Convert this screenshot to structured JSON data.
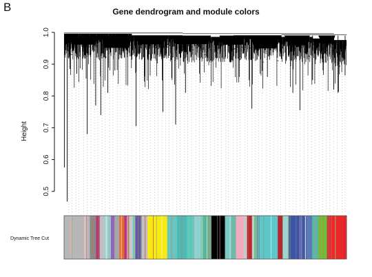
{
  "panel_label": "B",
  "chart_data": {
    "type": "dendrogram",
    "title": "Gene dendrogram and module colors",
    "ylabel": "Height",
    "xlabel": "",
    "ylim": [
      0.43,
      1.0
    ],
    "yticks": [
      0.5,
      0.6,
      0.7,
      0.8,
      0.9,
      1.0
    ],
    "ytick_labels": [
      "0.5",
      "0.6",
      "0.7",
      "0.8",
      "0.9",
      "1.0"
    ],
    "color_bar_label": "Dynamic Tree Cut",
    "merge_heights": [
      0.995,
      0.99,
      0.985,
      0.99,
      0.985,
      0.98,
      0.975
    ],
    "leaf_dips": [
      {
        "x": 0.001,
        "y": 0.575
      },
      {
        "x": 0.011,
        "y": 0.468
      },
      {
        "x": 0.021,
        "y": 0.885
      },
      {
        "x": 0.045,
        "y": 0.87
      },
      {
        "x": 0.082,
        "y": 0.68
      },
      {
        "x": 0.112,
        "y": 0.77
      },
      {
        "x": 0.13,
        "y": 0.74
      },
      {
        "x": 0.155,
        "y": 0.81
      },
      {
        "x": 0.18,
        "y": 0.88
      },
      {
        "x": 0.255,
        "y": 0.705
      },
      {
        "x": 0.35,
        "y": 0.75
      },
      {
        "x": 0.395,
        "y": 0.71
      },
      {
        "x": 0.43,
        "y": 0.81
      },
      {
        "x": 0.62,
        "y": 0.86
      },
      {
        "x": 0.665,
        "y": 0.76
      },
      {
        "x": 0.72,
        "y": 0.86
      },
      {
        "x": 0.81,
        "y": 0.81
      },
      {
        "x": 0.835,
        "y": 0.755
      },
      {
        "x": 0.88,
        "y": 0.85
      },
      {
        "x": 0.955,
        "y": 0.82
      },
      {
        "x": 0.97,
        "y": 0.81
      },
      {
        "x": 0.995,
        "y": 0.865
      }
    ],
    "module_colors": [
      {
        "start": 0.0,
        "end": 0.105,
        "color": "#b7b7b7"
      },
      {
        "start": 0.105,
        "end": 0.13,
        "color": "#8a8a8a"
      },
      {
        "start": 0.13,
        "end": 0.145,
        "color": "#b23a7a"
      },
      {
        "start": 0.145,
        "end": 0.165,
        "color": "#c0c0c0"
      },
      {
        "start": 0.165,
        "end": 0.19,
        "color": "#9fd4cf"
      },
      {
        "start": 0.19,
        "end": 0.205,
        "color": "#8f66b8"
      },
      {
        "start": 0.205,
        "end": 0.225,
        "color": "#a5a5a5"
      },
      {
        "start": 0.225,
        "end": 0.245,
        "color": "#e66a2c"
      },
      {
        "start": 0.245,
        "end": 0.262,
        "color": "#b23a7a"
      },
      {
        "start": 0.262,
        "end": 0.278,
        "color": "#c8c8c8"
      },
      {
        "start": 0.278,
        "end": 0.29,
        "color": "#7dd3cc"
      },
      {
        "start": 0.29,
        "end": 0.315,
        "color": "#6a52a8"
      },
      {
        "start": 0.315,
        "end": 0.34,
        "color": "#c0c0c0"
      },
      {
        "start": 0.34,
        "end": 0.42,
        "color": "#f5ea14"
      },
      {
        "start": 0.42,
        "end": 0.46,
        "color": "#6ec3bd"
      },
      {
        "start": 0.46,
        "end": 0.5,
        "color": "#4bbbb5"
      },
      {
        "start": 0.5,
        "end": 0.53,
        "color": "#5fc8c0"
      },
      {
        "start": 0.53,
        "end": 0.565,
        "color": "#8dd2cc"
      },
      {
        "start": 0.565,
        "end": 0.585,
        "color": "#5ab4a0"
      },
      {
        "start": 0.585,
        "end": 0.6,
        "color": "#7aa88c"
      },
      {
        "start": 0.6,
        "end": 0.655,
        "color": "#000000"
      },
      {
        "start": 0.655,
        "end": 0.68,
        "color": "#7dc9c4"
      },
      {
        "start": 0.68,
        "end": 0.7,
        "color": "#6fb9a6"
      },
      {
        "start": 0.7,
        "end": 0.73,
        "color": "#f5a9bd"
      },
      {
        "start": 0.73,
        "end": 0.745,
        "color": "#c9c9c9"
      },
      {
        "start": 0.745,
        "end": 0.765,
        "color": "#b52a30"
      },
      {
        "start": 0.765,
        "end": 0.775,
        "color": "#c8c8c8"
      },
      {
        "start": 0.775,
        "end": 0.87,
        "color": "#5ec8c8"
      },
      {
        "start": 0.87,
        "end": 0.89,
        "color": "#b52a30"
      },
      {
        "start": 0.89,
        "end": 0.915,
        "color": "#9ad6d0"
      },
      {
        "start": 0.915,
        "end": 0.99,
        "color": "#3b54a8"
      },
      {
        "start": 0.99,
        "end": 1.01,
        "color": "#5a7ab8"
      },
      {
        "start": 1.01,
        "end": 1.035,
        "color": "#57b8a6"
      },
      {
        "start": 1.035,
        "end": 1.07,
        "color": "#6dbf3f"
      },
      {
        "start": 1.07,
        "end": 1.085,
        "color": "#cf3d3d"
      },
      {
        "start": 1.085,
        "end": 1.1,
        "color": "#e8282b"
      },
      {
        "start": 1.1,
        "end": 1.15,
        "color": "#e8282b"
      }
    ]
  }
}
